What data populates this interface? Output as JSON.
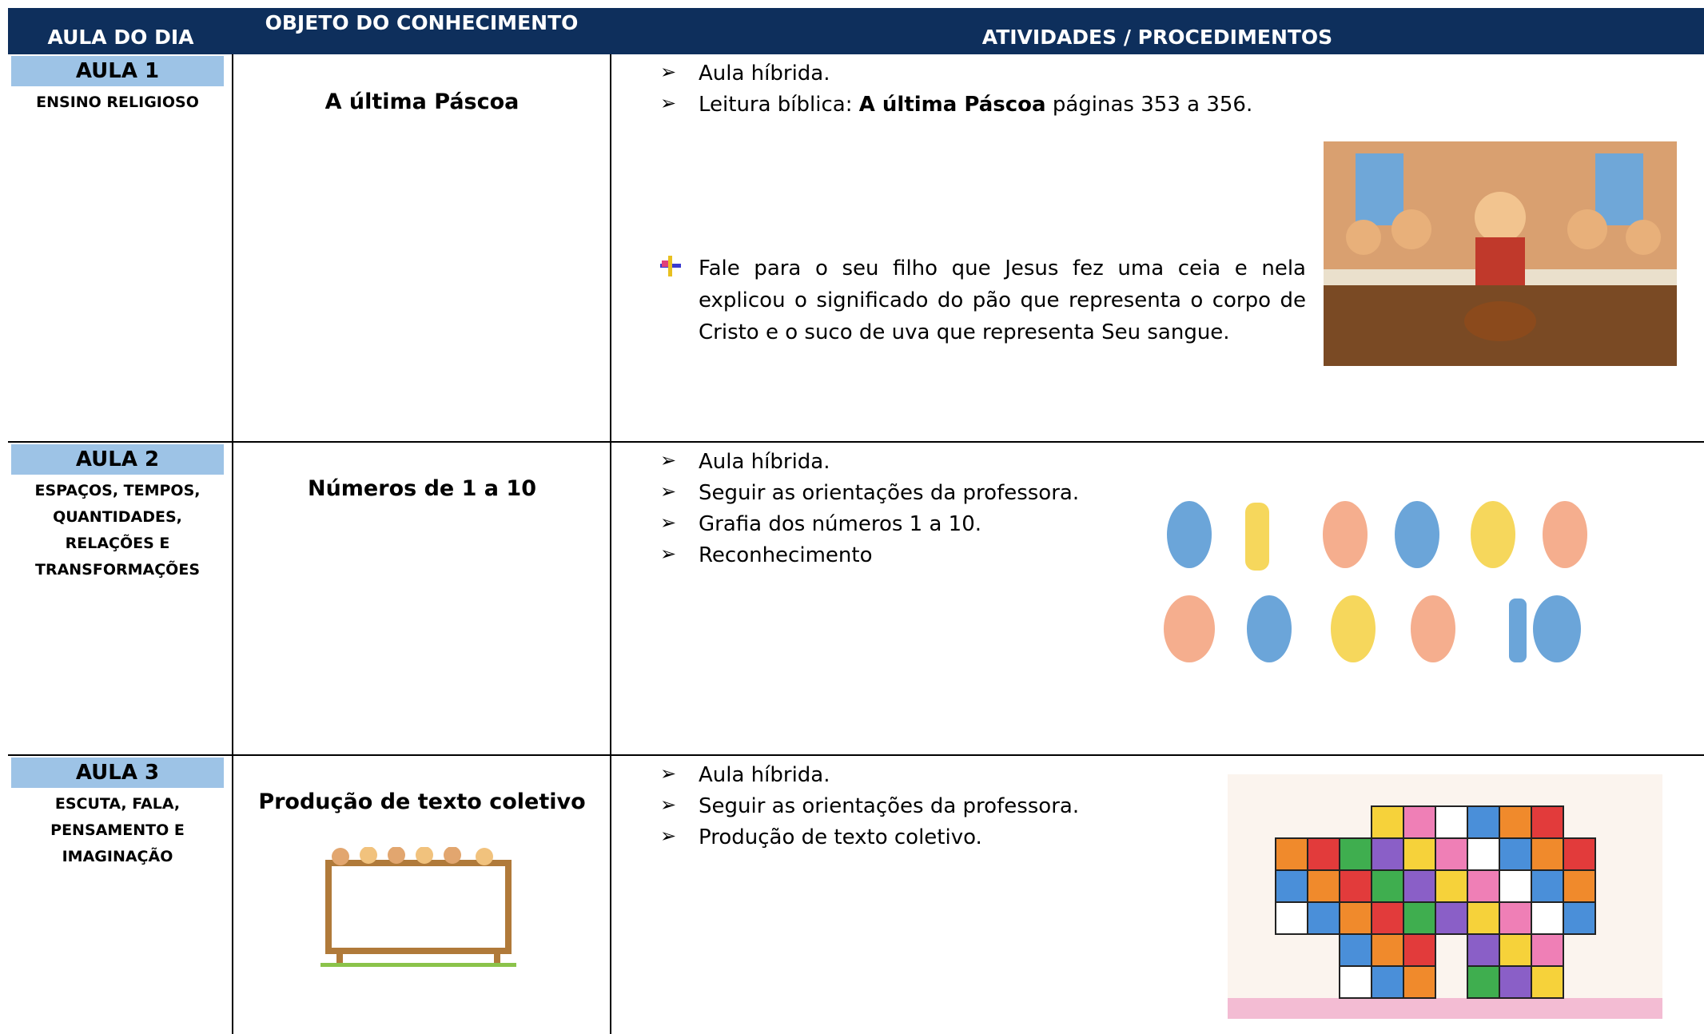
{
  "table": {
    "headers": [
      "AULA DO DIA",
      "OBJETO DO CONHECIMENTO",
      "ATIVIDADES / PROCEDIMENTOS"
    ],
    "rows": [
      {
        "lesson": "AULA 1",
        "area": "ENSINO RELIGIOSO",
        "topic": "A última Páscoa",
        "activities": [
          "Aula híbrida.",
          {
            "prefix": "Leitura bíblica: ",
            "bold": "A última Páscoa",
            "suffix": " páginas 353 a 356."
          }
        ],
        "note": "Fale para o seu filho que Jesus fez uma ceia e nela explicou o significado do pão que representa o corpo de Cristo e o suco de uva que representa Seu sangue."
      },
      {
        "lesson": "AULA 2",
        "area": "ESPAÇOS, TEMPOS, QUANTIDADES, RELAÇÕES E TRANSFORMAÇÕES",
        "topic": "Números de 1 a 10",
        "activities": [
          "Aula híbrida.",
          "Seguir as orientações da professora.",
          "Grafia dos números 1 a 10.",
          "Reconhecimento"
        ]
      },
      {
        "lesson": "AULA 3",
        "area": "ESCUTA, FALA, PENSAMENTO E IMAGINAÇÃO",
        "topic": "Produção de texto coletivo",
        "activities": [
          "Aula híbrida.",
          "Seguir as orientações da professora.",
          "Produção de texto coletivo."
        ]
      }
    ]
  }
}
